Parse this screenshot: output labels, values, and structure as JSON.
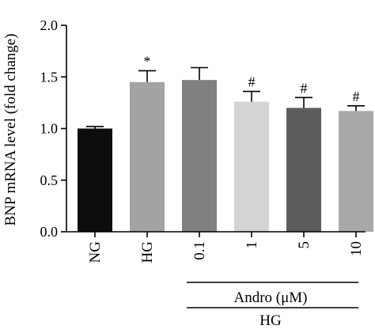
{
  "chart_data": {
    "type": "bar",
    "ylabel": "BNP mRNA level (fold change)",
    "ylim": [
      0,
      2.0
    ],
    "yticks": [
      "0.0",
      "0.5",
      "1.0",
      "1.5",
      "2.0"
    ],
    "ytick_values": [
      0,
      0.5,
      1.0,
      1.5,
      2.0
    ],
    "categories": [
      "NG",
      "HG",
      "0.1",
      "1",
      "5",
      "10"
    ],
    "values": [
      1.0,
      1.45,
      1.47,
      1.26,
      1.2,
      1.17
    ],
    "errors": [
      0.02,
      0.11,
      0.12,
      0.1,
      0.1,
      0.05
    ],
    "colors": [
      "#0d0d0d",
      "#a3a3a3",
      "#808080",
      "#d4d4d4",
      "#5c5c5c",
      "#a8a8a8"
    ],
    "annotations": [
      "",
      "*",
      "",
      "#",
      "#",
      "#"
    ],
    "group_labels": {
      "andro": "Andro (μM)",
      "hg": "HG"
    },
    "grid": false
  }
}
